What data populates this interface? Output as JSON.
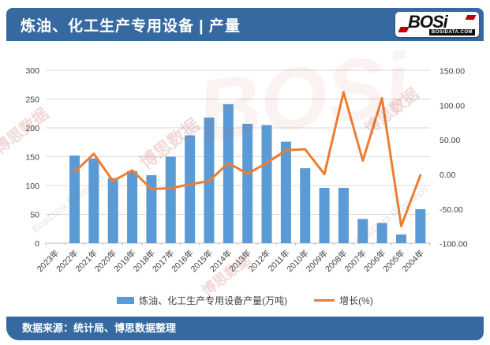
{
  "header": {
    "title": "炼油、化工生产专用设备 | 产量",
    "logo": {
      "brand": "BOSi",
      "domain": "BOSIDATA.COM"
    }
  },
  "chart_data": {
    "type": "bar",
    "subtype": "bar+line dual axis combo",
    "categories": [
      "2023年",
      "2022年",
      "2021年",
      "2020年",
      "2019年",
      "2018年",
      "2017年",
      "2016年",
      "2015年",
      "2014年",
      "2013年",
      "2012年",
      "2011年",
      "2010年",
      "2009年",
      "2008年",
      "2007年",
      "2006年",
      "2005年",
      "2004年"
    ],
    "series": [
      {
        "name": "炼油、化工生产专用设备产量(万吨)",
        "type": "bar",
        "axis": "left",
        "color": "#5b9bd5",
        "values": [
          null,
          152,
          147,
          113,
          125,
          118,
          150,
          187,
          218,
          241,
          207,
          205,
          176,
          130,
          96,
          96,
          42,
          35,
          15,
          59
        ]
      },
      {
        "name": "增长(%)",
        "type": "line",
        "axis": "right",
        "color": "#ed7d31",
        "values": [
          null,
          3.5,
          29.9,
          -9.6,
          5.9,
          -21.0,
          -19.8,
          -14.2,
          -9.5,
          16.4,
          1.0,
          16.5,
          35.0,
          36.5,
          0.5,
          119.0,
          20.0,
          110.0,
          -74.6,
          -1.0
        ]
      }
    ],
    "left_axis": {
      "min": 0,
      "max": 300,
      "step": 50,
      "ticks": [
        "0",
        "50",
        "100",
        "150",
        "200",
        "250",
        "300"
      ]
    },
    "right_axis": {
      "min": -100,
      "max": 150,
      "step": 50,
      "ticks": [
        "150.00",
        "100.00",
        "50.00",
        "0.00",
        "-50.00",
        "-100.00"
      ]
    },
    "grid": true,
    "legend_position": "bottom",
    "title": "炼油、化工生产专用设备 | 产量"
  },
  "legend": {
    "bar_label": "炼油、化工生产专用设备产量(万吨)",
    "line_label": "增长(%)"
  },
  "footer": {
    "source": "数据来源：统计局、博思数据整理"
  },
  "watermarks": {
    "w0": "博思数据",
    "w1": "BosiData Research",
    "w2": "博思数据",
    "w3": "博思数据",
    "w4": "BosiData Research",
    "w5": "博思数据",
    "ghost": "BOSi"
  }
}
